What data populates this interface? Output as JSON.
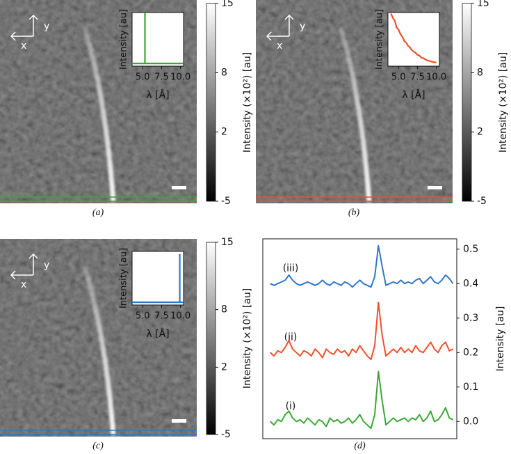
{
  "axis_letters": {
    "x": "x",
    "y": "y"
  },
  "panels": [
    {
      "label": "(a)",
      "colorbar": {
        "label": "Intensity (×10²) [au]",
        "lim": [
          -5,
          15
        ],
        "ticks": [
          15,
          8,
          2,
          -5
        ]
      },
      "inset": {
        "type": "line",
        "xlabel": "λ [Å]",
        "ylabel": "Intensity [au]",
        "xlim": [
          3.6,
          10.4
        ],
        "ylim": [
          0,
          1
        ],
        "xticks": [
          {
            "value": 5,
            "label": "5.0"
          },
          {
            "value": 7.5,
            "label": "7.5"
          },
          {
            "value": 10,
            "label": "10.0"
          }
        ],
        "series": [
          {
            "color": "#3aa832",
            "x": [
              3.6,
              5.3,
              5.3,
              5.3,
              10.4
            ],
            "values": [
              0.05,
              0.05,
              1,
              0.05,
              0.05
            ]
          }
        ]
      }
    },
    {
      "label": "(b)",
      "colorbar": {
        "label": "Intensity (×10²) [au]",
        "lim": [
          -5,
          15
        ],
        "ticks": [
          15,
          8,
          2,
          -5
        ]
      },
      "inset": {
        "type": "line",
        "xlabel": "λ [Å]",
        "ylabel": "Intensity [au]",
        "xlim": [
          3.6,
          10.4
        ],
        "ylim": [
          0,
          1
        ],
        "xticks": [
          {
            "value": 5,
            "label": "5.0"
          },
          {
            "value": 7.5,
            "label": "7.5"
          },
          {
            "value": 10,
            "label": "10.0"
          }
        ],
        "series": [
          {
            "color": "#f0502a",
            "x": [
              4,
              4.25,
              4.5,
              4.75,
              5,
              5.25,
              5.5,
              5.75,
              6,
              6.25,
              6.5,
              6.75,
              7,
              7.25,
              7.5,
              7.75,
              8,
              8.25,
              8.5,
              8.75,
              9,
              9.25,
              9.5,
              9.75,
              10
            ],
            "values": [
              0.98,
              0.9,
              0.85,
              0.72,
              0.68,
              0.6,
              0.55,
              0.47,
              0.44,
              0.38,
              0.35,
              0.3,
              0.27,
              0.25,
              0.21,
              0.2,
              0.16,
              0.15,
              0.13,
              0.11,
              0.1,
              0.09,
              0.08,
              0.07,
              0.07
            ]
          }
        ]
      }
    },
    {
      "label": "(c)",
      "colorbar": {
        "label": "Intensity (×10²) [au]",
        "lim": [
          -5,
          15
        ],
        "ticks": [
          15,
          8,
          2,
          -5
        ]
      },
      "inset": {
        "type": "line",
        "xlabel": "λ [Å]",
        "ylabel": "Intensity [au]",
        "xlim": [
          3.6,
          10.4
        ],
        "ylim": [
          0,
          1
        ],
        "xticks": [
          {
            "value": 5,
            "label": "5.0"
          },
          {
            "value": 7.5,
            "label": "7.5"
          },
          {
            "value": 10,
            "label": "10.0"
          }
        ],
        "series": [
          {
            "color": "#2f78c4",
            "x": [
              3.6,
              9.9,
              9.9,
              9.9,
              10.4
            ],
            "values": [
              0.05,
              0.05,
              0.95,
              0.05,
              0.05
            ]
          }
        ]
      }
    }
  ],
  "chart_data": {
    "type": "line",
    "label": "(d)",
    "ylabel": "Intensity [au]",
    "xlim": [
      -2,
      50
    ],
    "ylim": [
      -0.05,
      0.53
    ],
    "yticks": [
      {
        "value": 0,
        "label": "0.0"
      },
      0.1,
      0.2,
      0.3,
      0.4,
      0.5
    ],
    "x": [
      0,
      1,
      2,
      3,
      4,
      5,
      6,
      7,
      8,
      9,
      10,
      11,
      12,
      13,
      14,
      15,
      16,
      17,
      18,
      19,
      20,
      21,
      22,
      23,
      24,
      25,
      26,
      27,
      28,
      29,
      30,
      31,
      32,
      33,
      34,
      35,
      36,
      37,
      38,
      39,
      40,
      41,
      42,
      43,
      44,
      45,
      46,
      47,
      48,
      49
    ],
    "series": [
      {
        "name": "(i)",
        "color": "#3aa832",
        "values": [
          0.0,
          -0.01,
          0.005,
          0.0,
          0.02,
          0.03,
          0.01,
          0.0,
          0.005,
          -0.005,
          0.01,
          0.0,
          -0.01,
          0.005,
          0.0,
          -0.015,
          0.01,
          0.0,
          0.005,
          -0.005,
          0.0,
          0.01,
          -0.005,
          0.005,
          0.02,
          0.0,
          -0.01,
          -0.02,
          0.02,
          0.145,
          0.06,
          -0.01,
          0.0,
          0.01,
          0.0,
          0.005,
          0.01,
          0.0,
          0.01,
          0.005,
          0.02,
          0.0,
          0.01,
          0.03,
          0.0,
          0.005,
          0.02,
          0.04,
          0.01,
          0.005
        ]
      },
      {
        "name": "(ii)",
        "color": "#f0502a",
        "values": [
          0.2,
          0.19,
          0.205,
          0.2,
          0.215,
          0.235,
          0.21,
          0.2,
          0.19,
          0.205,
          0.2,
          0.19,
          0.21,
          0.2,
          0.185,
          0.21,
          0.2,
          0.195,
          0.21,
          0.2,
          0.205,
          0.19,
          0.21,
          0.2,
          0.22,
          0.205,
          0.19,
          0.18,
          0.22,
          0.345,
          0.25,
          0.19,
          0.2,
          0.21,
          0.2,
          0.215,
          0.2,
          0.21,
          0.2,
          0.22,
          0.205,
          0.2,
          0.215,
          0.23,
          0.21,
          0.2,
          0.22,
          0.23,
          0.205,
          0.21
        ]
      },
      {
        "name": "(iii)",
        "color": "#2f78c4",
        "values": [
          0.4,
          0.395,
          0.4,
          0.405,
          0.41,
          0.425,
          0.41,
          0.4,
          0.395,
          0.4,
          0.405,
          0.4,
          0.395,
          0.4,
          0.41,
          0.4,
          0.395,
          0.405,
          0.4,
          0.395,
          0.405,
          0.4,
          0.39,
          0.4,
          0.41,
          0.4,
          0.395,
          0.39,
          0.42,
          0.51,
          0.45,
          0.395,
          0.4,
          0.405,
          0.4,
          0.41,
          0.4,
          0.405,
          0.4,
          0.41,
          0.415,
          0.4,
          0.41,
          0.42,
          0.405,
          0.4,
          0.41,
          0.425,
          0.415,
          0.4
        ]
      }
    ]
  }
}
